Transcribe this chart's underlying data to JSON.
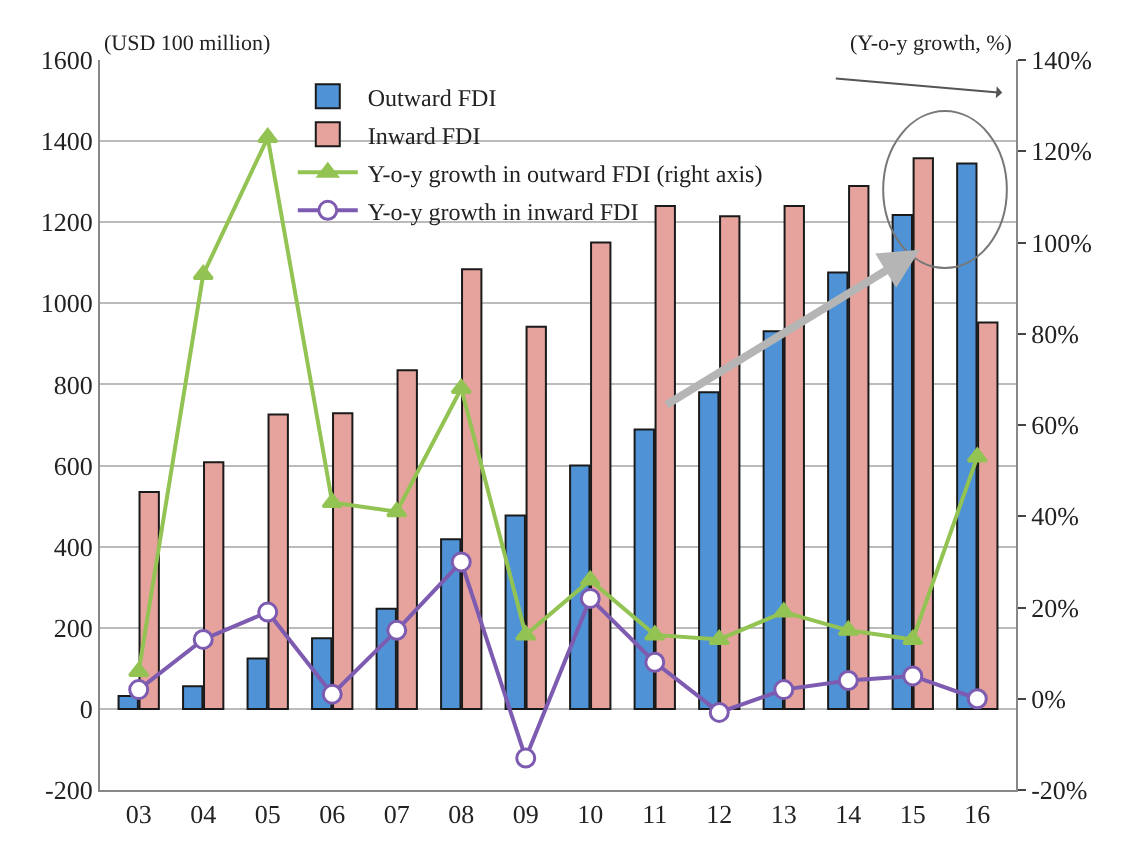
{
  "chart_data": {
    "type": "bar",
    "ylabel": "(USD 100 million)",
    "y2label": "(Y-o-y growth, %)",
    "categories": [
      "03",
      "04",
      "05",
      "06",
      "07",
      "08",
      "09",
      "10",
      "11",
      "12",
      "13",
      "14",
      "15",
      "16"
    ],
    "series": [
      {
        "name": "Outward FDI",
        "color": "#4f93d6",
        "values": [
          32,
          56,
          124,
          174,
          247,
          418,
          477,
          600,
          689,
          781,
          931,
          1076,
          1218,
          1345
        ]
      },
      {
        "name": "Inward FDI",
        "color": "#e6a39d",
        "values": [
          535,
          608,
          726,
          729,
          835,
          1084,
          942,
          1150,
          1240,
          1215,
          1240,
          1289,
          1358,
          953
        ]
      },
      {
        "name": "Y-o-y growth in outward FDI (right axis)",
        "type": "line",
        "axis": "y2",
        "marker": "triangle",
        "color": "#92c353",
        "values": [
          6,
          93,
          123,
          43,
          41,
          68,
          14,
          26,
          14,
          13,
          19,
          15,
          13,
          53
        ]
      },
      {
        "name": "Y-o-y growth in inward FDI",
        "type": "line",
        "axis": "y2",
        "marker": "circle",
        "color": "#7d5bb0",
        "values": [
          2,
          13,
          19,
          1,
          15,
          30,
          -13,
          22,
          8,
          -3,
          2,
          4,
          5,
          0
        ]
      }
    ],
    "ylim": [
      -200,
      1600
    ],
    "yticks": [
      -200,
      0,
      200,
      400,
      600,
      800,
      1000,
      1200,
      1400,
      1600
    ],
    "y2lim": [
      -20,
      140
    ],
    "y2ticks": [
      {
        "value": -20,
        "label": "-20%"
      },
      {
        "value": 0,
        "label": "0%"
      },
      {
        "value": 20,
        "label": "20%"
      },
      {
        "value": 40,
        "label": "40%"
      },
      {
        "value": 60,
        "label": "60%"
      },
      {
        "value": 80,
        "label": "80%"
      },
      {
        "value": 100,
        "label": "100%"
      },
      {
        "value": 120,
        "label": "120%"
      },
      {
        "value": 140,
        "label": "140%"
      }
    ],
    "grid": "y",
    "legend": "top left"
  }
}
